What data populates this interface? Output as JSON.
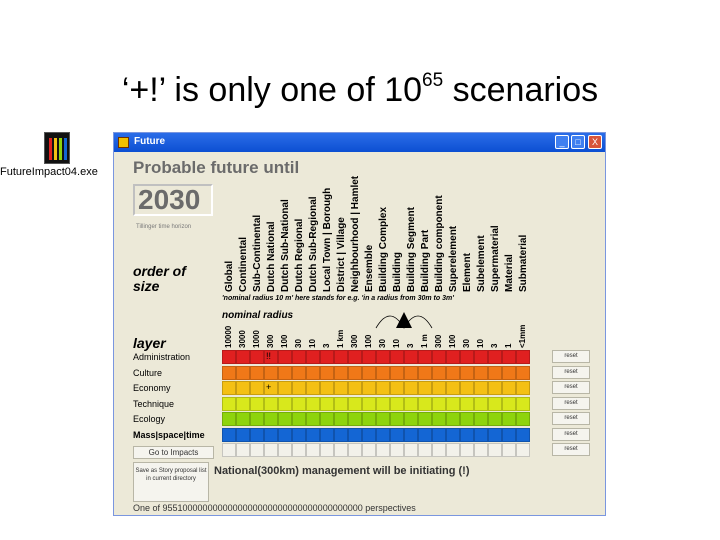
{
  "slide": {
    "title_main": "‘+!’ is only one of 10",
    "title_exp": "65",
    "title_tail": " scenarios"
  },
  "desktop_icon": {
    "label": "FutureImpact04.exe",
    "icon": "future-impact-app-icon"
  },
  "window": {
    "title": "Future",
    "buttons": [
      "_",
      "□",
      "X"
    ],
    "heading": "Probable future until",
    "year": "2030",
    "year_caption": "Tillinger time horizon",
    "order_of_size_label": [
      "order of",
      "size"
    ],
    "layer_heading": "layer",
    "scales": [
      "Global",
      "Continental",
      "Sub-Continental",
      "Dutch National",
      "Dutch Sub-National",
      "Dutch Regional",
      "Dutch Sub-Regional",
      "Local Town | Borough",
      "District | Village",
      "Neighbourhood | Hamlet",
      "Ensemble",
      "Building Complex",
      "Building",
      "Building Segment",
      "Building Part",
      "Building component",
      "Superelement",
      "Element",
      "Subelement",
      "Supermaterial",
      "Material",
      "Submaterial"
    ],
    "nominal_note": "'nominal radius 10 m' here stands for e.g. 'in a radius from 30m to 3m'",
    "nominal_title": "nominal radius",
    "radius_values": [
      "10000",
      "3000",
      "1000",
      "300",
      "100",
      "30",
      "10",
      "3",
      "1 km",
      "300",
      "100",
      "30",
      "10",
      "3",
      "1 m",
      "300",
      "100",
      "30",
      "10",
      "3",
      "1",
      "<1mm"
    ],
    "layers": [
      {
        "label": "Administration",
        "color": "#e02020",
        "bold": false
      },
      {
        "label": "Culture",
        "color": "#f07818",
        "bold": false
      },
      {
        "label": "Economy",
        "color": "#f4c014",
        "bold": false
      },
      {
        "label": "Technique",
        "color": "#d8e81c",
        "bold": false
      },
      {
        "label": "Ecology",
        "color": "#8ed40c",
        "bold": false
      },
      {
        "label": "Mass|space|time",
        "color": "#1466d4",
        "bold": true
      },
      {
        "label": "",
        "color": "#f2f1ea",
        "bold": false
      }
    ],
    "reset_label": "reset",
    "markers": [
      {
        "row": 0,
        "col": 3,
        "symbol": "!!"
      },
      {
        "row": 2,
        "col": 3,
        "symbol": "+"
      }
    ],
    "goto_button": "Go to Impacts",
    "status": "National(300km) management will be initiating (!)",
    "story_button": "Save as Story proposal list in current directory",
    "footer": "One of 9551000000000000000000000000000000000000 perspectives"
  }
}
